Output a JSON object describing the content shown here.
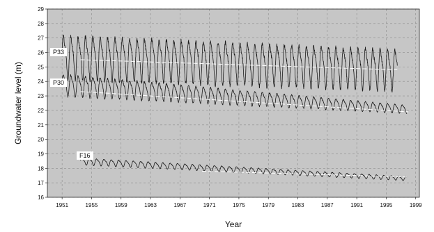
{
  "chart_data": {
    "type": "line",
    "title": "",
    "xlabel": "Year",
    "ylabel": "Groundwater level (m)",
    "xlim": [
      1949,
      1999.5
    ],
    "ylim": [
      16,
      29
    ],
    "xticks": [
      1951,
      1955,
      1959,
      1963,
      1967,
      1971,
      1975,
      1979,
      1983,
      1987,
      1991,
      1995,
      1999
    ],
    "yticks": [
      16,
      17,
      18,
      19,
      20,
      21,
      22,
      23,
      24,
      25,
      26,
      27,
      28,
      29
    ],
    "grid": true,
    "legend": "none",
    "background_color": "#c6c6c6",
    "line_color": "#1a1a1a",
    "trend_color": "#ffffff",
    "series": [
      {
        "name": "P33",
        "x_start": 1951,
        "x_end": 1996.5,
        "base_start": 25.8,
        "base_end": 24.9,
        "amplitude_start": 1.6,
        "amplitude_end": 1.5,
        "trend": [
          [
            1953.5,
            25.5
          ],
          [
            1996.5,
            24.8
          ]
        ]
      },
      {
        "name": "P30",
        "x_start": 1951,
        "x_end": 1997.8,
        "base_start": 23.8,
        "base_end": 22.1,
        "amplitude_start": 0.8,
        "amplitude_end": 0.3,
        "trend": [
          [
            1953.5,
            23.3
          ],
          [
            1998,
            21.9
          ]
        ]
      },
      {
        "name": "F16",
        "x_start": 1953.5,
        "x_end": 1997.8,
        "base_start": 18.5,
        "base_end": 17.3,
        "amplitude_start": 0.25,
        "amplitude_end": 0.15,
        "trend": [
          [
            1970,
            17.8
          ],
          [
            1998,
            17.4
          ]
        ]
      }
    ]
  }
}
